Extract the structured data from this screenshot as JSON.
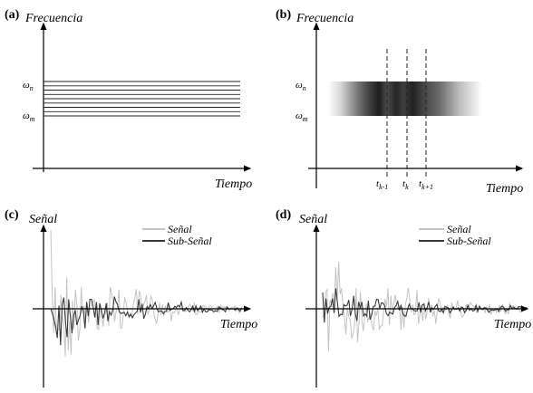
{
  "panels": {
    "a": {
      "label": "(a)",
      "y_axis": "Frecuencia",
      "x_axis": "Tiempo",
      "omega_n": "ω",
      "omega_n_sub": "n",
      "omega_m": "ω",
      "omega_m_sub": "m"
    },
    "b": {
      "label": "(b)",
      "y_axis": "Frecuencia",
      "x_axis": "Tiempo",
      "omega_n": "ω",
      "omega_n_sub": "n",
      "omega_m": "ω",
      "omega_m_sub": "m",
      "ticks": [
        {
          "base": "t",
          "sub": "k-1"
        },
        {
          "base": "t",
          "sub": "k"
        },
        {
          "base": "t",
          "sub": "k+1"
        }
      ]
    },
    "c": {
      "label": "(c)",
      "y_axis": "Señal",
      "x_axis": "Tiempo",
      "legend": [
        "Señal",
        "Sub-Señal"
      ]
    },
    "d": {
      "label": "(d)",
      "y_axis": "Señal",
      "x_axis": "Tiempo",
      "legend": [
        "Señal",
        "Sub-Señal"
      ]
    }
  },
  "colors": {
    "signal": "#c4c4c4",
    "subsignal": "#3a3a3a",
    "axis": "#000000",
    "band_dark": "#222222"
  }
}
